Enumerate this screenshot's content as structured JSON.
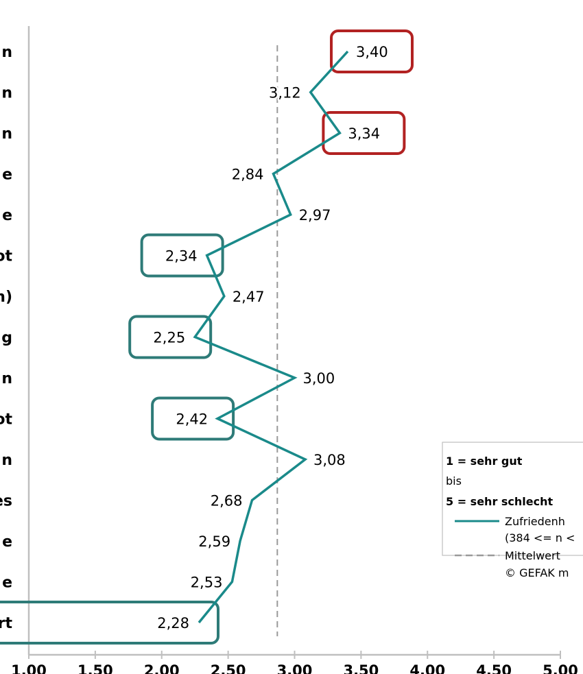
{
  "chart_data": {
    "type": "line",
    "categories": [
      "n",
      "n",
      "n",
      "e",
      "e",
      "ot",
      "n)",
      "g",
      "n",
      "ot",
      "n",
      "es",
      "e",
      "e",
      "rt"
    ],
    "series": [
      {
        "values": [
          3.4,
          3.12,
          3.34,
          2.84,
          2.97,
          2.34,
          2.47,
          2.25,
          3.0,
          2.42,
          3.08,
          2.68,
          2.59,
          2.53,
          2.28
        ],
        "labels": [
          "3,40",
          "3,12",
          "3,34",
          "2,84",
          "2,97",
          "2,34",
          "2,47",
          "2,25",
          "3,00",
          "2,42",
          "3,08",
          "2,68",
          "2,59",
          "2,53",
          "2,28"
        ],
        "color": "#1a8a8a"
      }
    ],
    "mean": 2.87,
    "mean_color": "#999999",
    "xlim": [
      1,
      5
    ],
    "x_ticks": [
      "1,00",
      "1,50",
      "2,00",
      "2,50",
      "3,00",
      "3,50",
      "4,00",
      "4,50",
      "5,00"
    ],
    "highlighted_high": [
      0,
      2
    ],
    "highlighted_low": [
      5,
      7,
      9,
      14
    ],
    "highlight_high_color": "#b22222",
    "highlight_low_color": "#2e7b78",
    "legend": {
      "line1": "1 = sehr gut",
      "line2": "bis",
      "line3": "5 = sehr schlecht",
      "series_label": "Zufriedenh",
      "series_sub": "(384 <= n <",
      "mean_label": "Mittelwert",
      "copyright": "© GEFAK m"
    },
    "grid": false,
    "legend_position": "bottom-right"
  }
}
